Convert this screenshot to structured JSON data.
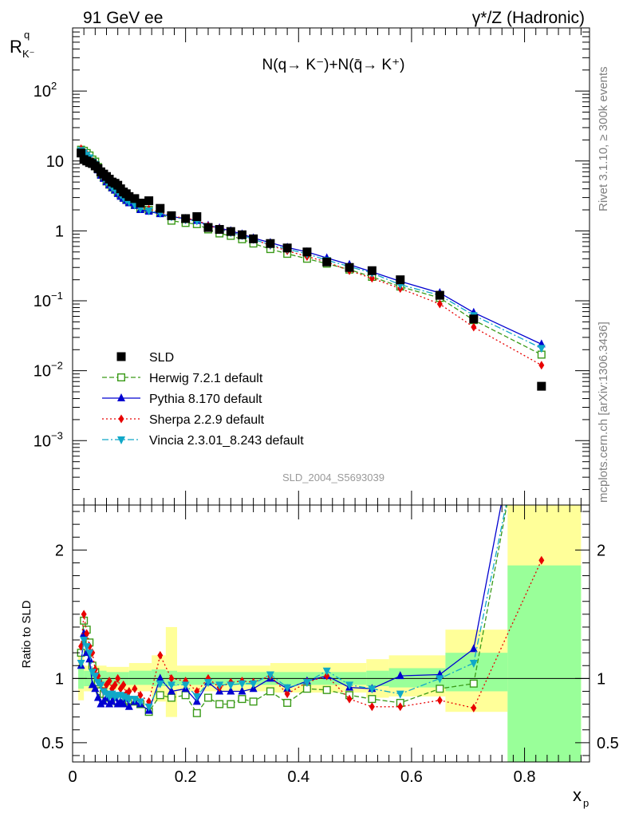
{
  "header": {
    "left": "91 GeV ee",
    "right": "γ*/Z (Hadronic)"
  },
  "side": {
    "rivet": "Rivet 3.1.10, ≥ 300k events",
    "mcplots": "mcplots.cern.ch [arXiv:1306.3436]"
  },
  "colors": {
    "data": "#000000",
    "herwig": "#3a9a18",
    "pythia": "#0000d0",
    "sherpa": "#e80000",
    "vincia": "#10a8c8",
    "band_inner": "#99ff99",
    "band_outer": "#ffff99"
  },
  "chart_data": [
    {
      "type": "scatter",
      "panel": "main",
      "title": "N(q→ K⁻)+N(q̄→ K⁺)",
      "analysis_label": "SLD_2004_S5693039",
      "ylabel": "R^q_K⁻",
      "ylabel_main": "R",
      "ylabel_sup": "q",
      "ylabel_sub": "K⁻",
      "yscale": "log",
      "xlim": [
        0,
        0.915
      ],
      "ylim": [
        0.00012,
        800
      ],
      "y_ticks": [
        {
          "v": 0.001,
          "base": "10",
          "exp": "−3"
        },
        {
          "v": 0.01,
          "base": "10",
          "exp": "−2"
        },
        {
          "v": 0.1,
          "base": "10",
          "exp": "−1"
        },
        {
          "v": 1,
          "base": "1",
          "exp": ""
        },
        {
          "v": 10,
          "base": "10",
          "exp": ""
        },
        {
          "v": 100,
          "base": "10",
          "exp": "2"
        }
      ],
      "legend_position": "lower-left",
      "x": [
        0.015,
        0.02,
        0.025,
        0.03,
        0.035,
        0.04,
        0.045,
        0.05,
        0.055,
        0.06,
        0.065,
        0.07,
        0.075,
        0.08,
        0.085,
        0.09,
        0.095,
        0.1,
        0.11,
        0.12,
        0.135,
        0.155,
        0.175,
        0.2,
        0.22,
        0.24,
        0.26,
        0.28,
        0.3,
        0.32,
        0.35,
        0.38,
        0.415,
        0.45,
        0.49,
        0.53,
        0.58,
        0.65,
        0.71,
        0.83
      ],
      "series": [
        {
          "name": "SLD",
          "key": "data",
          "marker": "square",
          "values": [
            13.0,
            10.5,
            10.0,
            9.5,
            9.2,
            8.5,
            7.8,
            7.0,
            6.5,
            6.0,
            5.5,
            5.0,
            4.8,
            4.5,
            4.0,
            3.6,
            3.4,
            3.1,
            2.9,
            2.5,
            2.7,
            2.1,
            1.65,
            1.5,
            1.6,
            1.12,
            1.05,
            0.98,
            0.88,
            0.77,
            0.66,
            0.57,
            0.5,
            0.36,
            0.3,
            0.27,
            0.2,
            0.12,
            0.055,
            0.006
          ]
        },
        {
          "name": "Herwig 7.2.1 default",
          "key": "herwig",
          "marker": "open-square",
          "dash": "6,3",
          "values": [
            14.5,
            14.0,
            13.0,
            12.0,
            10.5,
            9.8,
            8.2,
            6.5,
            5.8,
            5.1,
            4.6,
            4.2,
            3.9,
            3.6,
            3.3,
            3.0,
            2.8,
            2.6,
            2.35,
            2.1,
            2.0,
            1.8,
            1.4,
            1.3,
            1.25,
            1.05,
            0.92,
            0.85,
            0.76,
            0.66,
            0.55,
            0.47,
            0.4,
            0.34,
            0.28,
            0.22,
            0.16,
            0.11,
            0.053,
            0.017
          ]
        },
        {
          "name": "Pythia 8.170 default",
          "key": "pythia",
          "marker": "triangle-up",
          "dash": "",
          "values": [
            14.0,
            13.0,
            12.0,
            11.0,
            9.6,
            8.8,
            7.4,
            6.2,
            5.6,
            5.0,
            4.5,
            4.1,
            3.8,
            3.4,
            3.1,
            2.9,
            2.7,
            2.5,
            2.3,
            2.0,
            1.9,
            1.75,
            1.6,
            1.5,
            1.4,
            1.2,
            1.1,
            1.0,
            0.9,
            0.79,
            0.68,
            0.58,
            0.5,
            0.41,
            0.33,
            0.26,
            0.19,
            0.13,
            0.068,
            0.024
          ]
        },
        {
          "name": "Sherpa 2.2.9 default",
          "key": "sherpa",
          "marker": "diamond",
          "dash": "2,3",
          "values": [
            15.0,
            13.5,
            12.5,
            11.0,
            9.8,
            9.0,
            7.6,
            6.4,
            5.7,
            5.1,
            4.6,
            4.2,
            3.9,
            3.6,
            3.3,
            3.1,
            2.9,
            2.7,
            2.45,
            2.2,
            2.05,
            1.85,
            1.65,
            1.5,
            1.45,
            1.18,
            1.08,
            0.96,
            0.87,
            0.76,
            0.62,
            0.52,
            0.43,
            0.36,
            0.27,
            0.21,
            0.15,
            0.09,
            0.042,
            0.012
          ]
        },
        {
          "name": "Vincia 2.3.01_8.243 default",
          "key": "vincia",
          "marker": "triangle-down",
          "dash": "8,3,2,3",
          "values": [
            14.2,
            13.2,
            12.2,
            11.2,
            9.8,
            9.0,
            7.6,
            6.4,
            5.7,
            5.1,
            4.6,
            4.2,
            3.9,
            3.6,
            3.3,
            3.0,
            2.8,
            2.6,
            2.35,
            2.1,
            1.95,
            1.8,
            1.6,
            1.45,
            1.4,
            1.15,
            1.05,
            0.95,
            0.86,
            0.76,
            0.63,
            0.55,
            0.47,
            0.38,
            0.31,
            0.25,
            0.17,
            0.12,
            0.062,
            0.021
          ]
        }
      ]
    },
    {
      "type": "line",
      "panel": "ratio",
      "ylabel": "Ratio to SLD",
      "xlabel": "x_p",
      "xlabel_main": "x",
      "xlabel_sub": "p",
      "xlim": [
        0,
        0.915
      ],
      "ylim": [
        0.35,
        2.35
      ],
      "x_ticks": [
        0,
        0.2,
        0.4,
        0.6,
        0.8
      ],
      "x_tick_labels": [
        "0",
        "0.2",
        "0.4",
        "0.6",
        "0.8"
      ],
      "y_ticks": [
        0.5,
        1,
        2
      ],
      "y_tick_labels": [
        "0.5",
        "1",
        "2"
      ],
      "bands": [
        {
          "x": [
            0.01,
            0.02
          ],
          "inner": [
            0.92,
            1.08
          ],
          "outer": [
            0.83,
            1.17
          ]
        },
        {
          "x": [
            0.02,
            0.06
          ],
          "inner": [
            0.94,
            1.06
          ],
          "outer": [
            0.9,
            1.1
          ]
        },
        {
          "x": [
            0.06,
            0.1
          ],
          "inner": [
            0.95,
            1.05
          ],
          "outer": [
            0.91,
            1.09
          ]
        },
        {
          "x": [
            0.1,
            0.14
          ],
          "inner": [
            0.95,
            1.06
          ],
          "outer": [
            0.9,
            1.12
          ]
        },
        {
          "x": [
            0.14,
            0.165
          ],
          "inner": [
            0.94,
            1.07
          ],
          "outer": [
            0.82,
            1.18
          ]
        },
        {
          "x": [
            0.165,
            0.185
          ],
          "inner": [
            0.94,
            1.06
          ],
          "outer": [
            0.7,
            1.4
          ]
        },
        {
          "x": [
            0.185,
            0.35
          ],
          "inner": [
            0.95,
            1.05
          ],
          "outer": [
            0.9,
            1.1
          ]
        },
        {
          "x": [
            0.35,
            0.52
          ],
          "inner": [
            0.95,
            1.05
          ],
          "outer": [
            0.89,
            1.12
          ]
        },
        {
          "x": [
            0.52,
            0.56
          ],
          "inner": [
            0.94,
            1.06
          ],
          "outer": [
            0.85,
            1.15
          ]
        },
        {
          "x": [
            0.56,
            0.66
          ],
          "inner": [
            0.93,
            1.08
          ],
          "outer": [
            0.86,
            1.18
          ]
        },
        {
          "x": [
            0.66,
            0.77
          ],
          "inner": [
            0.9,
            1.2
          ],
          "outer": [
            0.74,
            1.38
          ]
        },
        {
          "x": [
            0.77,
            0.9
          ],
          "inner": [
            0.35,
            1.88
          ],
          "outer": [
            0.35,
            2.35
          ]
        }
      ],
      "x": [
        0.015,
        0.02,
        0.025,
        0.03,
        0.035,
        0.04,
        0.045,
        0.05,
        0.055,
        0.06,
        0.065,
        0.07,
        0.075,
        0.08,
        0.085,
        0.09,
        0.095,
        0.1,
        0.11,
        0.12,
        0.135,
        0.155,
        0.175,
        0.2,
        0.22,
        0.24,
        0.26,
        0.28,
        0.3,
        0.32,
        0.35,
        0.38,
        0.415,
        0.45,
        0.49,
        0.53,
        0.58,
        0.65,
        0.71,
        0.83
      ],
      "series": [
        {
          "name": "Herwig 7.2.1 default",
          "key": "herwig",
          "marker": "open-square",
          "dash": "6,3",
          "values": [
            1.2,
            1.45,
            1.38,
            1.28,
            1.1,
            1.05,
            0.97,
            0.9,
            0.88,
            0.86,
            0.85,
            0.85,
            0.83,
            0.82,
            0.84,
            0.83,
            0.82,
            0.83,
            0.82,
            0.8,
            0.74,
            0.87,
            0.85,
            0.87,
            0.73,
            0.85,
            0.8,
            0.8,
            0.84,
            0.82,
            0.9,
            0.81,
            0.92,
            0.91,
            0.87,
            0.84,
            0.81,
            0.92,
            0.96,
            3.8
          ]
        },
        {
          "name": "Pythia 8.170 default",
          "key": "pythia",
          "marker": "triangle-up",
          "dash": "",
          "values": [
            1.1,
            1.35,
            1.2,
            1.15,
            0.95,
            0.92,
            0.85,
            0.8,
            0.82,
            0.85,
            0.8,
            0.82,
            0.85,
            0.8,
            0.82,
            0.8,
            0.85,
            0.78,
            0.82,
            0.8,
            0.75,
            1.0,
            0.9,
            0.92,
            0.82,
            0.97,
            0.9,
            0.9,
            0.9,
            0.92,
            1.0,
            0.92,
            0.98,
            1.02,
            0.93,
            0.92,
            1.02,
            1.03,
            1.23,
            4.0
          ]
        },
        {
          "name": "Sherpa 2.2.9 default",
          "key": "sherpa",
          "marker": "diamond",
          "dash": "2,3",
          "values": [
            1.25,
            1.5,
            1.35,
            1.25,
            1.2,
            1.07,
            1.02,
            0.96,
            0.9,
            0.95,
            0.98,
            0.92,
            0.95,
            1.0,
            0.92,
            0.95,
            0.88,
            0.9,
            0.92,
            0.87,
            0.82,
            1.18,
            1.0,
            0.98,
            0.9,
            1.0,
            0.93,
            0.97,
            0.98,
            0.97,
            1.02,
            0.88,
            0.97,
            1.02,
            0.84,
            0.78,
            0.78,
            0.83,
            0.77,
            1.92
          ]
        },
        {
          "name": "Vincia 2.3.01_8.243 default",
          "key": "vincia",
          "marker": "triangle-down",
          "dash": "8,3,2,3",
          "values": [
            1.12,
            1.3,
            1.25,
            1.2,
            1.05,
            1.02,
            0.97,
            0.95,
            0.9,
            0.88,
            0.86,
            0.88,
            0.86,
            0.87,
            0.87,
            0.86,
            0.85,
            0.84,
            0.84,
            0.82,
            0.78,
            0.96,
            0.95,
            0.95,
            0.86,
            0.97,
            0.95,
            0.95,
            0.96,
            0.96,
            1.03,
            0.93,
            0.97,
            1.06,
            0.95,
            0.92,
            0.88,
            1.0,
            1.12,
            3.7
          ]
        }
      ]
    }
  ]
}
